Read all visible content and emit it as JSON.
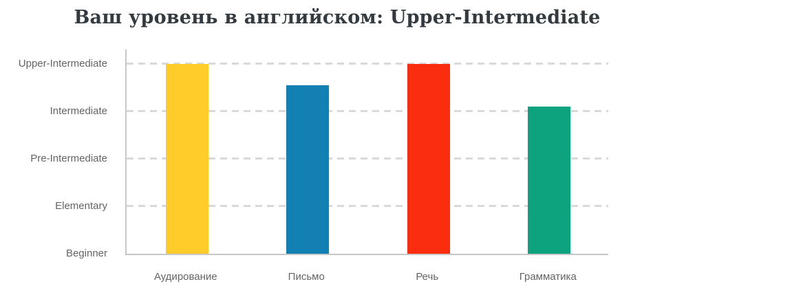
{
  "chart_data": {
    "type": "bar",
    "title": "Ваш уровень в английском: Upper-Intermediate",
    "categories": [
      "Аудирование",
      "Письмо",
      "Речь",
      "Грамматика"
    ],
    "values": [
      4,
      3.55,
      4,
      3.1
    ],
    "bar_colors": [
      "#ffcc29",
      "#1380b3",
      "#fa2d0e",
      "#0da37e"
    ],
    "y_ticks": [
      {
        "label": "Beginner",
        "value": 0
      },
      {
        "label": "Elementary",
        "value": 1
      },
      {
        "label": "Pre-Intermediate",
        "value": 2
      },
      {
        "label": "Intermediate",
        "value": 3
      },
      {
        "label": "Upper-Intermediate",
        "value": 4
      }
    ],
    "gridline_values": [
      1,
      2,
      3,
      4
    ],
    "ylim": [
      0,
      4.33
    ],
    "value_scale": "levels: 0=Beginner, 1=Elementary, 2=Pre-Intermediate, 3=Intermediate, 4=Upper-Intermediate",
    "grid": "dashed horizontal gridlines at each level",
    "legend": "none",
    "xlabel": "",
    "ylabel": "",
    "styles": {
      "grid_color": "#d9d9d9",
      "axis_color": "#c8c8c8",
      "tick_label_color": "#646464",
      "title_color": "#333b41",
      "background": "#ffffff"
    }
  }
}
